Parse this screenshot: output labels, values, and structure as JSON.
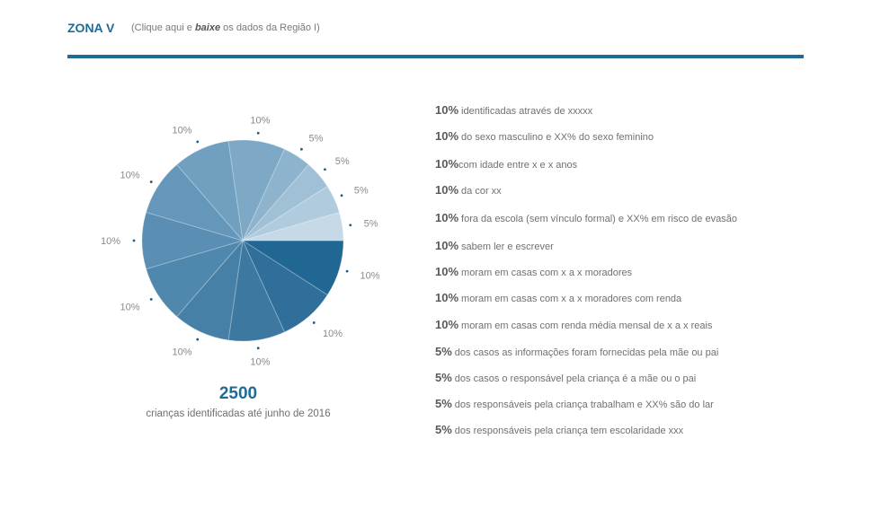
{
  "header": {
    "title": "ZONA V",
    "link_prefix": "(Clique aqui e",
    "link_emphasis": "baixe",
    "link_suffix": "os dados da Região I)"
  },
  "colors": {
    "accent": "#1f6a96",
    "slices": [
      "#216794",
      "#2f6f99",
      "#3c78a0",
      "#4680a7",
      "#4f87ad",
      "#5a8fb3",
      "#6597ba",
      "#709fbf",
      "#7ea9c6",
      "#8eb3cd",
      "#a0c0d5",
      "#b0cbdd",
      "#c5d9e6"
    ]
  },
  "summary": {
    "total": "2500",
    "caption": "crianças identificadas até junho de 2016"
  },
  "chart_data": {
    "type": "pie",
    "slices": [
      {
        "label": "5%",
        "value": 5
      },
      {
        "label": "5%",
        "value": 5
      },
      {
        "label": "5%",
        "value": 5
      },
      {
        "label": "5%",
        "value": 5
      },
      {
        "label": "10%",
        "value": 10
      },
      {
        "label": "10%",
        "value": 10
      },
      {
        "label": "10%",
        "value": 10
      },
      {
        "label": "10%",
        "value": 10
      },
      {
        "label": "10%",
        "value": 10
      },
      {
        "label": "10%",
        "value": 10
      },
      {
        "label": "10%",
        "value": 10
      },
      {
        "label": "10%",
        "value": 10
      },
      {
        "label": "10%",
        "value": 10
      }
    ]
  },
  "stats": [
    {
      "pct": "10%",
      "text": "identificadas através de xxxxx"
    },
    {
      "pct": "10%",
      "text": "do sexo masculino e XX% do sexo feminino"
    },
    {
      "pct": "10%",
      "text": "com idade entre x e x anos"
    },
    {
      "pct": "10%",
      "text": "da cor xx"
    },
    {
      "pct": "10%",
      "text": "fora da escola (sem vínculo formal) e XX% em risco de evasão"
    },
    {
      "pct": "10%",
      "text": "sabem ler e escrever"
    },
    {
      "pct": "10%",
      "text": "moram em casas com x a x moradores"
    },
    {
      "pct": "10%",
      "text": "moram em casas com x a x moradores com renda"
    },
    {
      "pct": "10%",
      "text": "moram em casas com renda média mensal de x a x reais"
    },
    {
      "pct": "5%",
      "text": "dos casos as informações foram fornecidas pela mãe ou pai"
    },
    {
      "pct": "5%",
      "text": "dos casos o responsável pela criança é a mãe ou o pai"
    },
    {
      "pct": "5%",
      "text": "dos responsáveis pela criança trabalham e XX% são do lar"
    },
    {
      "pct": "5%",
      "text": "dos responsáveis pela criança tem escolaridade xxx"
    }
  ]
}
